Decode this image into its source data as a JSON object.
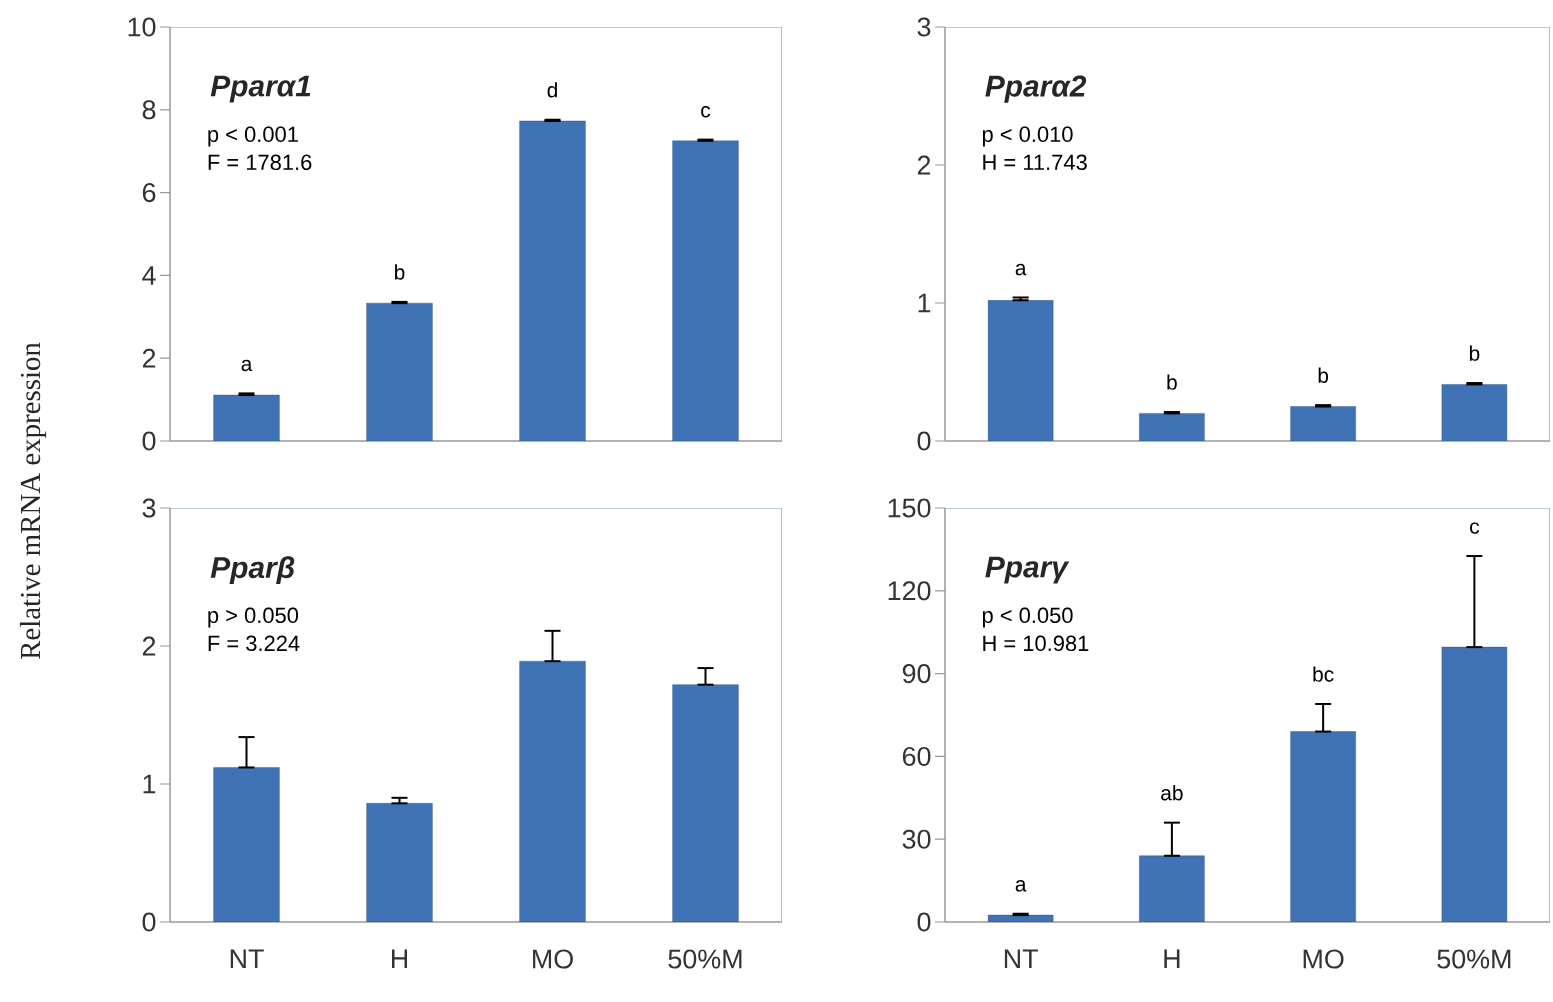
{
  "chart_data": [
    {
      "type": "bar",
      "title": "Pparα1",
      "ylabel": "Relative mRNA expression",
      "categories": [
        "NT",
        "H",
        "MO",
        "50%M"
      ],
      "values": [
        1.11,
        3.33,
        7.73,
        7.25
      ],
      "errors": [
        [
          1.11,
          1.15
        ],
        [
          3.33,
          3.36
        ],
        [
          7.73,
          7.76
        ],
        [
          7.25,
          7.28
        ]
      ],
      "color": "#3f73b5",
      "ylim": [
        0,
        10
      ],
      "yticks": [
        0,
        2,
        4,
        6,
        8,
        10
      ],
      "tick_labels": "y",
      "annotations": [
        "p < 0.001",
        "F = 1781.6",
        {
          "text": "a",
          "x": "NT",
          "y": 1.15
        },
        {
          "text": "b",
          "x": "H",
          "y": 3.36
        },
        {
          "text": "d",
          "x": "MO",
          "y": 7.76
        },
        {
          "text": "c",
          "x": "50%M",
          "y": 7.28
        }
      ]
    },
    {
      "type": "bar",
      "title": "Pparα2",
      "categories": [
        "NT",
        "H",
        "MO",
        "50%M"
      ],
      "values": [
        1.02,
        0.2,
        0.25,
        0.41
      ],
      "errors": [
        [
          1.02,
          1.04
        ],
        [
          0.2,
          0.21
        ],
        [
          0.25,
          0.26
        ],
        [
          0.41,
          0.42
        ]
      ],
      "color": "#3f73b5",
      "ylim": [
        0,
        3
      ],
      "yticks": [
        0,
        1,
        2,
        3
      ],
      "tick_labels": "y",
      "annotations": [
        "p < 0.010",
        "H = 11.743",
        {
          "text": "a",
          "x": "NT",
          "y": 1.04
        },
        {
          "text": "b",
          "x": "H",
          "y": 0.21
        },
        {
          "text": "b",
          "x": "MO",
          "y": 0.26
        },
        {
          "text": "b",
          "x": "50%M",
          "y": 0.42
        }
      ]
    },
    {
      "type": "bar",
      "title": "Pparβ",
      "categories": [
        "NT",
        "H",
        "MO",
        "50%M"
      ],
      "values": [
        1.12,
        0.86,
        1.89,
        1.72
      ],
      "errors": [
        [
          1.12,
          1.34
        ],
        [
          0.86,
          0.9
        ],
        [
          1.89,
          2.11
        ],
        [
          1.72,
          1.84
        ]
      ],
      "color": "#3f73b5",
      "ylim": [
        0,
        3
      ],
      "yticks": [
        0,
        1,
        2,
        3
      ],
      "annotations": [
        "p > 0.050",
        "F = 3.224"
      ]
    },
    {
      "type": "bar",
      "title": "Pparγ",
      "categories": [
        "NT",
        "H",
        "MO",
        "50%M"
      ],
      "values": [
        2.5,
        24,
        69,
        99.6
      ],
      "errors": [
        [
          2.5,
          3
        ],
        [
          24,
          36
        ],
        [
          69,
          79
        ],
        [
          99.6,
          132.6
        ]
      ],
      "color": "#3f73b5",
      "ylim": [
        0,
        150
      ],
      "yticks": [
        0,
        30,
        60,
        90,
        120,
        150
      ],
      "annotations": [
        "p < 0.050",
        "H = 10.981",
        {
          "text": "a",
          "x": "NT",
          "y": 3
        },
        {
          "text": "ab",
          "x": "H",
          "y": 36
        },
        {
          "text": "bc",
          "x": "MO",
          "y": 79
        },
        {
          "text": "c",
          "x": "50%M",
          "y": 132.6
        }
      ]
    }
  ]
}
